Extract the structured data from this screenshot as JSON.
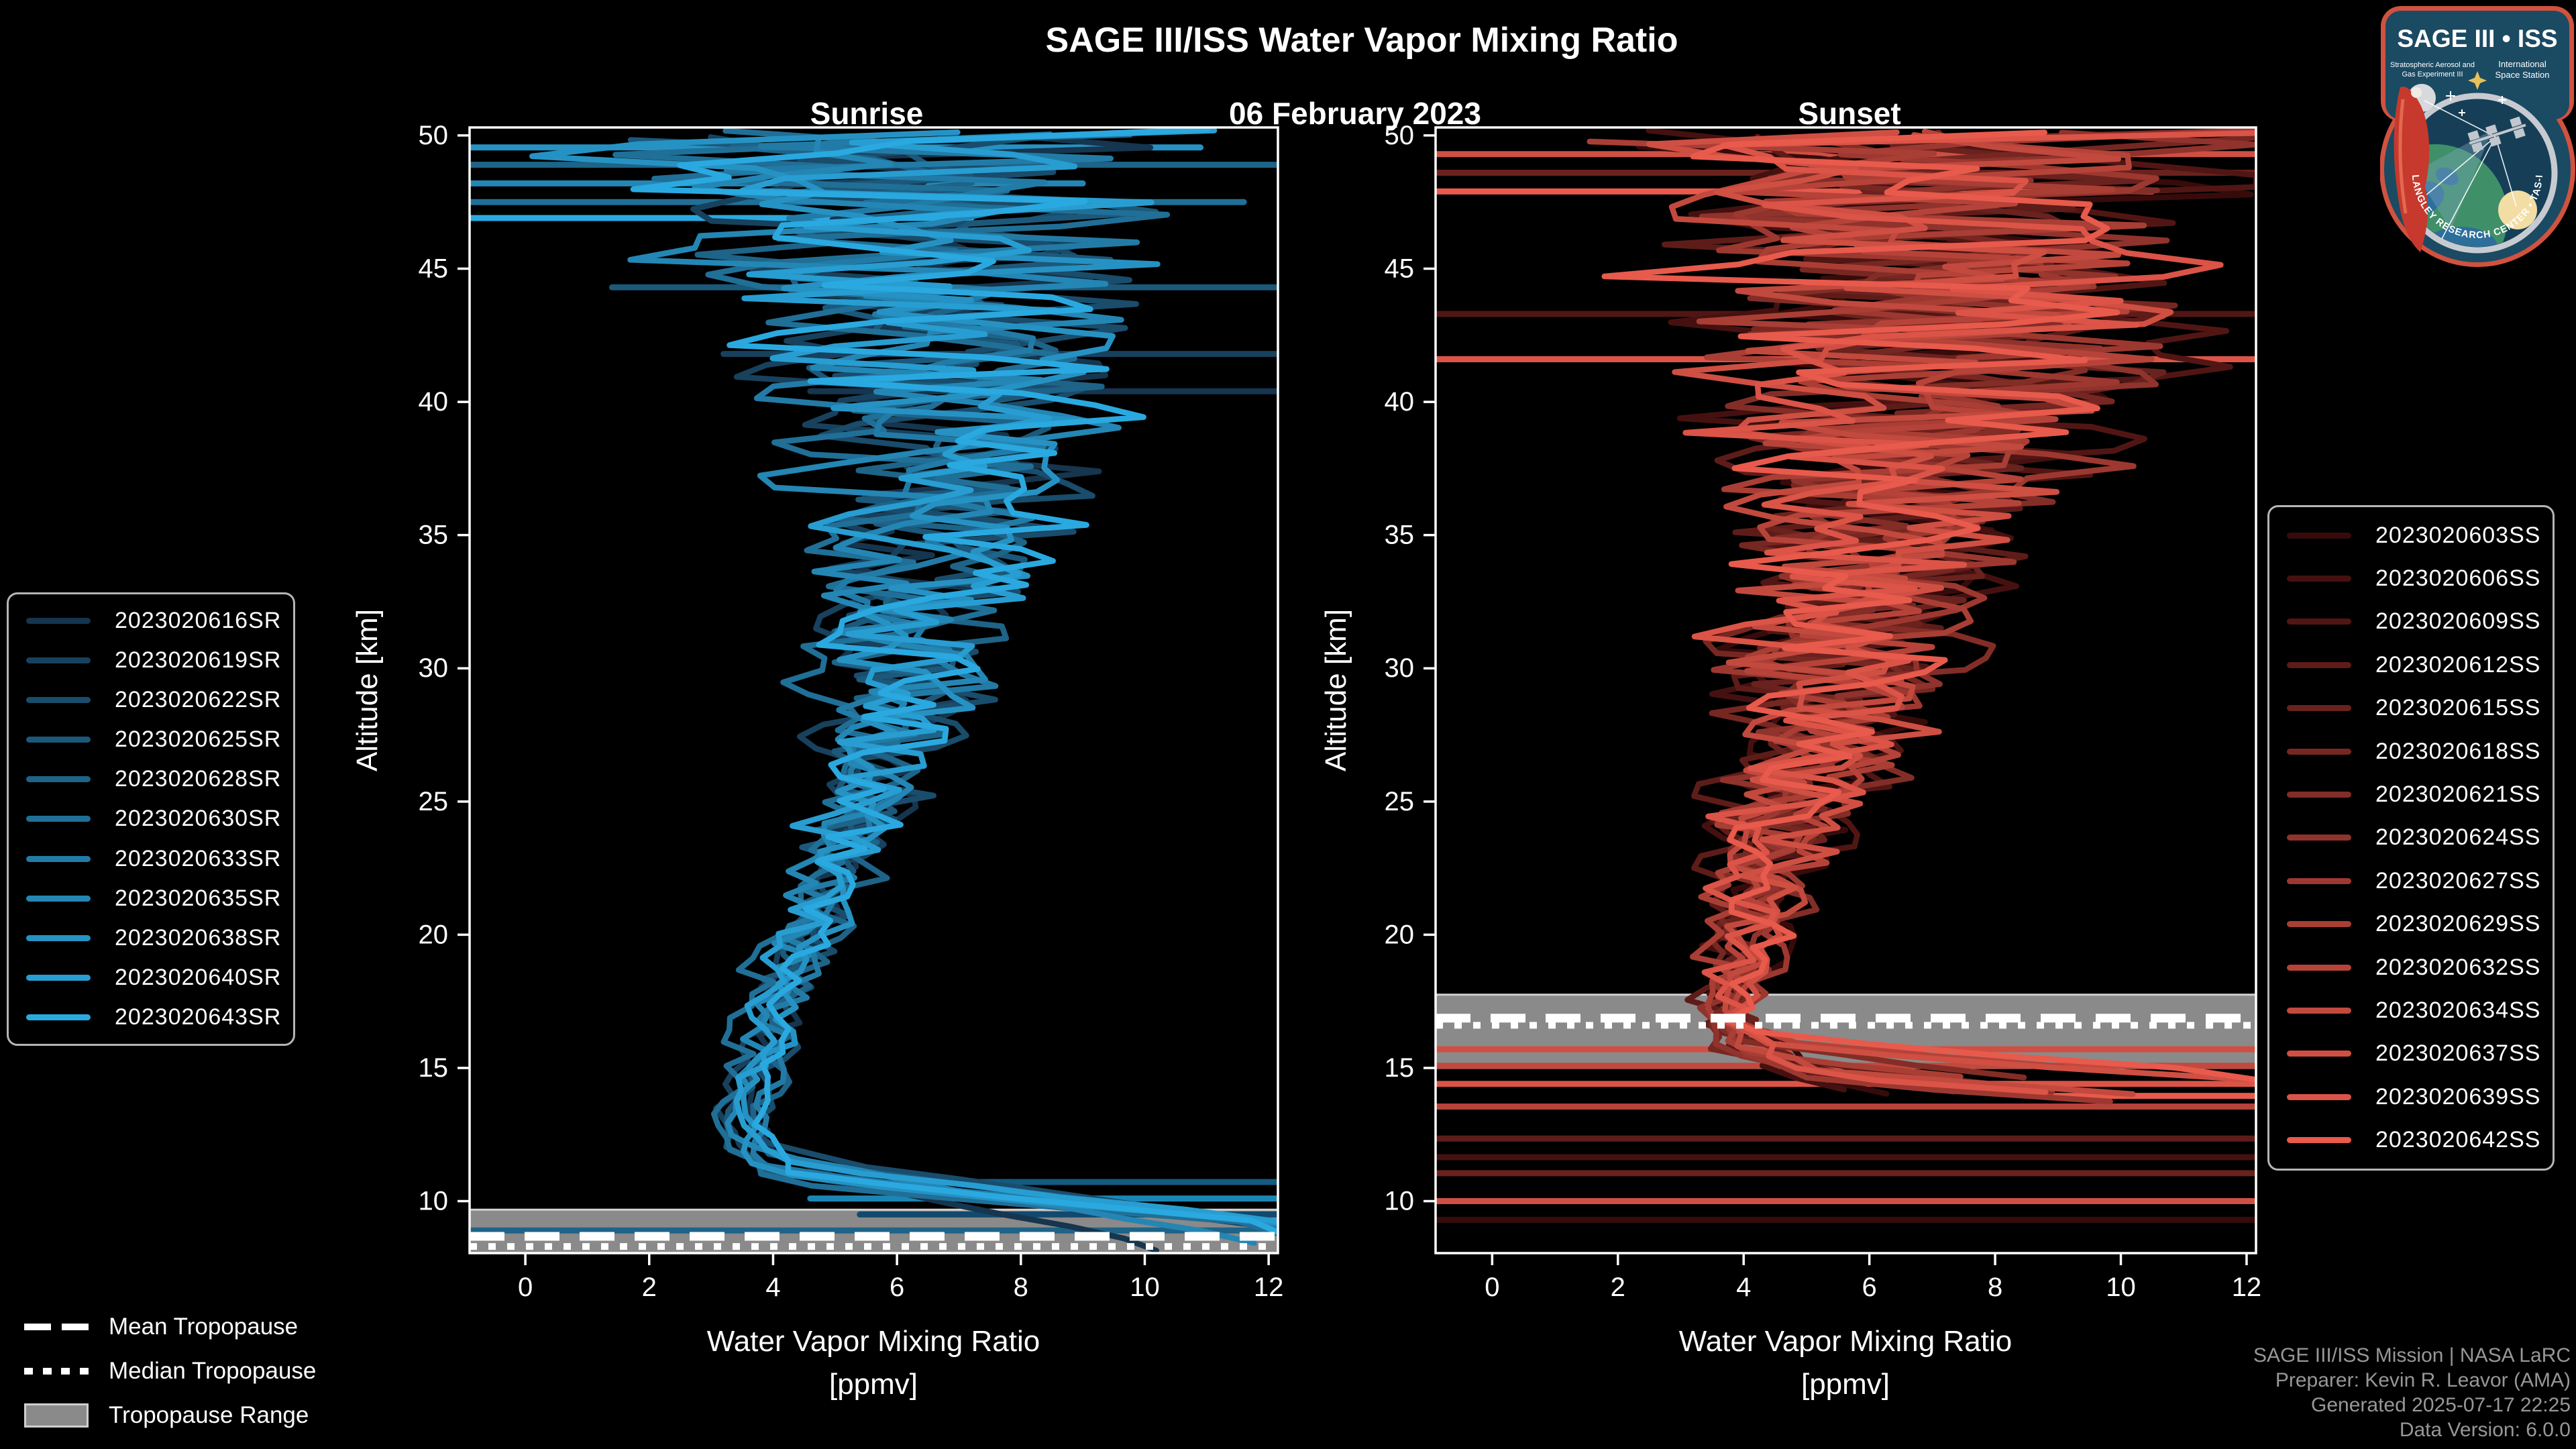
{
  "header": {
    "title": "SAGE III/ISS Water Vapor Mixing Ratio",
    "date": "06 February 2023",
    "sunrise_label": "Sunrise",
    "sunset_label": "Sunset"
  },
  "axes": {
    "x_label_line1": "Water Vapor Mixing Ratio",
    "x_label_line2": "[ppmv]",
    "y_label": "Altitude [km]",
    "x_ticks": [
      0,
      2,
      4,
      6,
      8,
      10,
      12
    ],
    "y_ticks": [
      10,
      15,
      20,
      25,
      30,
      35,
      40,
      45,
      50
    ],
    "x_range": [
      -0.9,
      12.15
    ],
    "y_range": [
      8.05,
      50.3
    ],
    "grid": false
  },
  "colors": {
    "background": "#000000",
    "axis": "#ffffff",
    "tropopause_band": "#8a8a8a",
    "tropopause_band_edge": "#d2d2d2",
    "tropopause_line": "#ffffff",
    "credits_text": "#979797",
    "legend_border": "#b5b5b5"
  },
  "tropopause_legend": [
    {
      "label": "Mean Tropopause",
      "style": "dashed"
    },
    {
      "label": "Median Tropopause",
      "style": "dotted"
    },
    {
      "label": "Tropopause Range",
      "style": "band"
    }
  ],
  "credits": [
    "SAGE III/ISS Mission | NASA LaRC",
    "Preparer: Kevin R. Leavor (AMA)",
    "Generated 2025-07-17 22:25",
    "Data Version: 6.0.0"
  ],
  "logo": {
    "title": "SAGE III • ISS",
    "subtitle_left_1": "Stratospheric Aerosol and",
    "subtitle_left_2": "Gas Experiment III",
    "subtitle_right_1": "International",
    "subtitle_right_2": "Space Station",
    "ring_text": "NASA LANGLEY RESEARCH CENTER • TAS-I • ESA",
    "border_color": "#d0523f",
    "field_color": "#1b4a63"
  },
  "chart_data": [
    {
      "type": "line",
      "panel": "sunrise",
      "header": "Sunrise",
      "xlabel": "Water Vapor Mixing Ratio [ppmv]",
      "ylabel": "Altitude [km]",
      "xlim": [
        -0.9,
        12.15
      ],
      "ylim": [
        8.05,
        50.3
      ],
      "mean_profile": [
        [
          50.3,
          6.3
        ],
        [
          46,
          6.6
        ],
        [
          42,
          6.9
        ],
        [
          38,
          7.0
        ],
        [
          34,
          6.6
        ],
        [
          30,
          6.1
        ],
        [
          26,
          5.6
        ],
        [
          22,
          4.8
        ],
        [
          18,
          4.1
        ],
        [
          15,
          3.7
        ],
        [
          13,
          3.5
        ],
        [
          11.5,
          3.9
        ],
        [
          10.5,
          4.6
        ],
        [
          9.5,
          5.6
        ],
        [
          8.05,
          6.5
        ]
      ],
      "noise_amp": [
        [
          50.3,
          6.3
        ],
        [
          46,
          5.2
        ],
        [
          42,
          4.2
        ],
        [
          38,
          3.1
        ],
        [
          34,
          2.3
        ],
        [
          30,
          1.7
        ],
        [
          26,
          1.15
        ],
        [
          22,
          0.8
        ],
        [
          18,
          0.5
        ],
        [
          14,
          0.35
        ],
        [
          11,
          0.4
        ],
        [
          8.05,
          0.5
        ]
      ],
      "tropopause": {
        "band": [
          8.05,
          9.68
        ],
        "mean": 8.68,
        "median": 8.3
      },
      "horizontals": [
        {
          "alt": 49.55,
          "x0": -0.9,
          "x1": 10.9,
          "color": "#2692c3"
        },
        {
          "alt": 48.9,
          "x0": -0.9,
          "x1": 12.15,
          "color": "#1e6388"
        },
        {
          "alt": 48.2,
          "x0": -0.9,
          "x1": 9.0,
          "color": "#2486b4"
        },
        {
          "alt": 47.5,
          "x0": -0.9,
          "x1": 11.6,
          "color": "#206f97"
        },
        {
          "alt": 46.9,
          "x0": -0.9,
          "x1": 7.2,
          "color": "#2aa9e0"
        },
        {
          "alt": 44.3,
          "x0": 1.4,
          "x1": 12.15,
          "color": "#1c587a"
        },
        {
          "alt": 41.8,
          "x0": 3.2,
          "x1": 12.15,
          "color": "#18415d"
        },
        {
          "alt": 40.4,
          "x0": 4.6,
          "x1": 12.15,
          "color": "#16354e"
        },
        {
          "alt": 10.72,
          "x0": 6.8,
          "x1": 12.15,
          "color": "#155a80"
        },
        {
          "alt": 10.1,
          "x0": 4.6,
          "x1": 12.15,
          "color": "#1b86b5"
        },
        {
          "alt": 9.5,
          "x0": 5.4,
          "x1": 12.15,
          "color": "#12496e"
        },
        {
          "alt": 8.9,
          "x0": -0.9,
          "x1": 12.15,
          "color": "#1e6388"
        }
      ],
      "series": [
        {
          "name": "2023020616SR",
          "color": "#16354e",
          "seed": 11,
          "shift": 0.1,
          "tail_alt": 11.9,
          "tail_slope": 1.1,
          "bottom_alt": 8.1
        },
        {
          "name": "2023020619SR",
          "color": "#18415d",
          "seed": 22,
          "shift": -0.2,
          "tail_alt": 11.4,
          "tail_slope": 3.2,
          "bottom_alt": 8.1
        },
        {
          "name": "2023020622SR",
          "color": "#1a4c6b",
          "seed": 33,
          "shift": 0.3,
          "tail_alt": 12.1,
          "tail_slope": 2.2,
          "bottom_alt": 8.1
        },
        {
          "name": "2023020625SR",
          "color": "#1c587a",
          "seed": 44,
          "shift": -0.1,
          "tail_alt": 11.0,
          "tail_slope": 4.0,
          "bottom_alt": 8.1
        },
        {
          "name": "2023020628SR",
          "color": "#1e6388",
          "seed": 55,
          "shift": 0.25,
          "tail_alt": 11.6,
          "tail_slope": 2.8,
          "bottom_alt": 8.1
        },
        {
          "name": "2023020630SR",
          "color": "#206f97",
          "seed": 66,
          "shift": -0.3,
          "tail_alt": 10.7,
          "tail_slope": 5.0,
          "bottom_alt": 8.1
        },
        {
          "name": "2023020633SR",
          "color": "#227ba6",
          "seed": 77,
          "shift": 0.15,
          "tail_alt": 11.2,
          "tail_slope": 3.6,
          "bottom_alt": 8.1
        },
        {
          "name": "2023020635SR",
          "color": "#2486b4",
          "seed": 88,
          "shift": -0.15,
          "tail_alt": 12.3,
          "tail_slope": 1.6,
          "bottom_alt": 8.1
        },
        {
          "name": "2023020638SR",
          "color": "#2692c3",
          "seed": 99,
          "shift": 0.05,
          "tail_alt": 10.9,
          "tail_slope": 4.4,
          "bottom_alt": 8.1
        },
        {
          "name": "2023020640SR",
          "color": "#289dd1",
          "seed": 110,
          "shift": -0.05,
          "tail_alt": 11.7,
          "tail_slope": 3.0,
          "bottom_alt": 8.1
        },
        {
          "name": "2023020643SR",
          "color": "#2aa9e0",
          "seed": 121,
          "shift": 0.2,
          "tail_alt": 11.1,
          "tail_slope": 3.8,
          "bottom_alt": 8.1
        }
      ]
    },
    {
      "type": "line",
      "panel": "sunset",
      "header": "Sunset",
      "xlabel": "Water Vapor Mixing Ratio [ppmv]",
      "ylabel": "Altitude [km]",
      "xlim": [
        -0.9,
        12.15
      ],
      "ylim": [
        8.05,
        50.3
      ],
      "mean_profile": [
        [
          50.3,
          7.0
        ],
        [
          46,
          6.9
        ],
        [
          42,
          6.8
        ],
        [
          38,
          6.5
        ],
        [
          34,
          6.1
        ],
        [
          30,
          5.5
        ],
        [
          26,
          4.9
        ],
        [
          22,
          4.2
        ],
        [
          19,
          3.9
        ],
        [
          17,
          3.8
        ],
        [
          16,
          4.0
        ],
        [
          15,
          4.6
        ],
        [
          14,
          5.6
        ],
        [
          13.4,
          6.4
        ]
      ],
      "noise_amp": [
        [
          50.3,
          6.0
        ],
        [
          46,
          5.2
        ],
        [
          42,
          4.4
        ],
        [
          38,
          3.6
        ],
        [
          34,
          2.9
        ],
        [
          30,
          2.3
        ],
        [
          26,
          1.6
        ],
        [
          22,
          1.0
        ],
        [
          19,
          0.65
        ],
        [
          17,
          0.5
        ],
        [
          15.5,
          0.8
        ],
        [
          13.4,
          1.2
        ]
      ],
      "tropopause": {
        "band": [
          15.0,
          17.75
        ],
        "mean": 16.87,
        "median": 16.6
      },
      "horizontals": [
        {
          "alt": 49.3,
          "x0": -0.9,
          "x1": 12.15,
          "color": "#cf4f43"
        },
        {
          "alt": 48.6,
          "x0": -0.9,
          "x1": 12.15,
          "color": "#6a221e"
        },
        {
          "alt": 47.9,
          "x0": -0.9,
          "x1": 10.5,
          "color": "#e85a4c"
        },
        {
          "alt": 43.3,
          "x0": -0.9,
          "x1": 12.15,
          "color": "#511614"
        },
        {
          "alt": 41.6,
          "x0": -0.9,
          "x1": 12.15,
          "color": "#db5447"
        },
        {
          "alt": 15.7,
          "x0": -0.9,
          "x1": 12.15,
          "color": "#cf4f43"
        },
        {
          "alt": 15.08,
          "x0": -0.9,
          "x1": 12.15,
          "color": "#c2493e"
        },
        {
          "alt": 14.4,
          "x0": -0.9,
          "x1": 12.15,
          "color": "#db5447"
        },
        {
          "alt": 13.95,
          "x0": 8.8,
          "x1": 12.15,
          "color": "#e85a4c"
        },
        {
          "alt": 13.55,
          "x0": -0.9,
          "x1": 12.15,
          "color": "#b64339"
        },
        {
          "alt": 12.35,
          "x0": -0.9,
          "x1": 12.15,
          "color": "#5e1c19"
        },
        {
          "alt": 11.65,
          "x0": -0.9,
          "x1": 12.15,
          "color": "#451110"
        },
        {
          "alt": 11.05,
          "x0": -0.9,
          "x1": 12.15,
          "color": "#6a221e"
        },
        {
          "alt": 10.0,
          "x0": -0.9,
          "x1": 12.15,
          "color": "#cf4f43"
        },
        {
          "alt": 9.3,
          "x0": -0.9,
          "x1": 12.15,
          "color": "#380b0b"
        }
      ],
      "series": [
        {
          "name": "2023020603SS",
          "color": "#380b0b",
          "seed": 201,
          "shift": 0.2,
          "tail_alt": 15.0,
          "tail_slope": 1.0,
          "bottom_alt": 13.6
        },
        {
          "name": "2023020606SS",
          "color": "#451110",
          "seed": 202,
          "shift": -0.2,
          "tail_alt": 14.6,
          "tail_slope": 2.2,
          "bottom_alt": 13.8
        },
        {
          "name": "2023020609SS",
          "color": "#511614",
          "seed": 203,
          "shift": 0.3,
          "tail_alt": 15.3,
          "tail_slope": 1.4,
          "bottom_alt": 14.0
        },
        {
          "name": "2023020612SS",
          "color": "#5e1c19",
          "seed": 204,
          "shift": -0.3,
          "tail_alt": 15.8,
          "tail_slope": 2.6,
          "bottom_alt": 14.2
        },
        {
          "name": "2023020615SS",
          "color": "#6a221e",
          "seed": 205,
          "shift": 0.1,
          "tail_alt": 14.9,
          "tail_slope": 3.4,
          "bottom_alt": 13.9
        },
        {
          "name": "2023020618SS",
          "color": "#772722",
          "seed": 206,
          "shift": -0.1,
          "tail_alt": 15.5,
          "tail_slope": 2.0,
          "bottom_alt": 14.3
        },
        {
          "name": "2023020621SS",
          "color": "#832d27",
          "seed": 207,
          "shift": 0.25,
          "tail_alt": 16.0,
          "tail_slope": 3.0,
          "bottom_alt": 14.5
        },
        {
          "name": "2023020624SS",
          "color": "#90332c",
          "seed": 208,
          "shift": -0.25,
          "tail_alt": 15.2,
          "tail_slope": 4.2,
          "bottom_alt": 14.1
        },
        {
          "name": "2023020627SS",
          "color": "#9d3830",
          "seed": 209,
          "shift": 0.15,
          "tail_alt": 14.7,
          "tail_slope": 5.0,
          "bottom_alt": 13.7
        },
        {
          "name": "2023020629SS",
          "color": "#a93e35",
          "seed": 210,
          "shift": -0.15,
          "tail_alt": 15.6,
          "tail_slope": 3.8,
          "bottom_alt": 14.4
        },
        {
          "name": "2023020632SS",
          "color": "#b64339",
          "seed": 211,
          "shift": 0.05,
          "tail_alt": 16.2,
          "tail_slope": 4.6,
          "bottom_alt": 14.6
        },
        {
          "name": "2023020634SS",
          "color": "#c2493e",
          "seed": 212,
          "shift": -0.05,
          "tail_alt": 15.1,
          "tail_slope": 5.4,
          "bottom_alt": 13.9
        },
        {
          "name": "2023020637SS",
          "color": "#cf4f43",
          "seed": 213,
          "shift": 0.2,
          "tail_alt": 15.9,
          "tail_slope": 6.0,
          "bottom_alt": 14.2
        },
        {
          "name": "2023020639SS",
          "color": "#db5447",
          "seed": 214,
          "shift": -0.2,
          "tail_alt": 14.8,
          "tail_slope": 6.6,
          "bottom_alt": 13.8
        },
        {
          "name": "2023020642SS",
          "color": "#e85a4c",
          "seed": 215,
          "shift": 0.1,
          "tail_alt": 16.4,
          "tail_slope": 5.2,
          "bottom_alt": 14.0
        }
      ]
    }
  ]
}
